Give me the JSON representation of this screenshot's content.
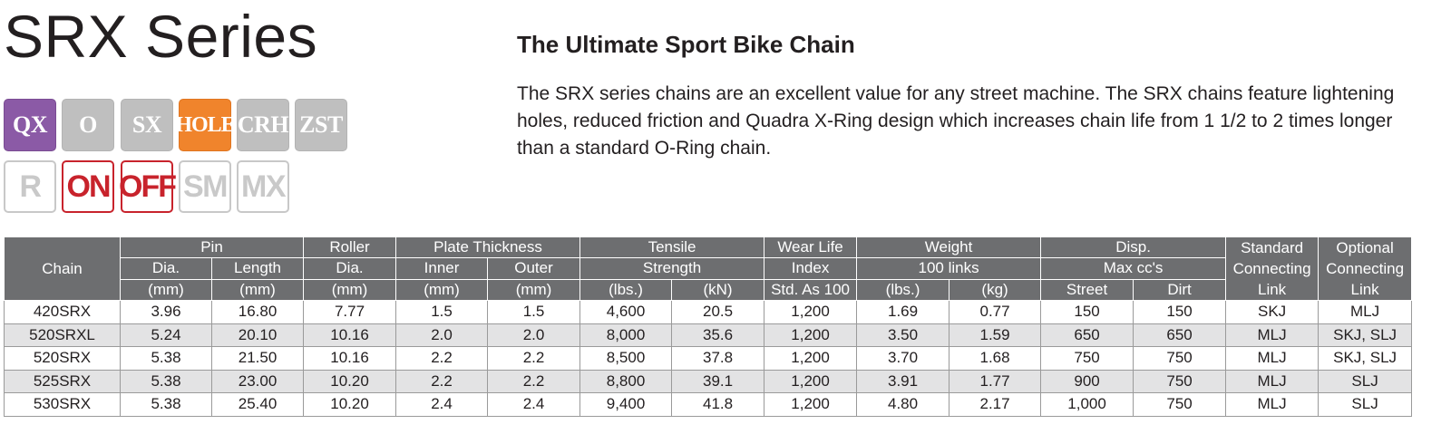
{
  "header": {
    "title": "SRX Series",
    "subtitle": "The Ultimate Sport Bike Chain",
    "description": "The SRX series chains are an excellent value for any street machine. The SRX chains feature lightening holes, reduced friction and Quadra X-Ring design which increases chain life from 1 1/2 to 2 times longer than a standard O-Ring chain."
  },
  "badges": {
    "row1": [
      {
        "label": "QX",
        "style": "purple"
      },
      {
        "label": "O",
        "style": "gray"
      },
      {
        "label": "SX",
        "style": "gray"
      },
      {
        "label": "HOLE",
        "style": "orange"
      },
      {
        "label": "CRH",
        "style": "gray"
      },
      {
        "label": "ZST",
        "style": "gray"
      }
    ],
    "row2": [
      {
        "label": "R",
        "style": "outline-gray"
      },
      {
        "label": "ON",
        "style": "outline-red"
      },
      {
        "label": "OFF",
        "style": "outline-red"
      },
      {
        "label": "SM",
        "style": "outline-gray"
      },
      {
        "label": "MX",
        "style": "outline-gray"
      }
    ]
  },
  "colors": {
    "purple": "#8b5aa6",
    "orange": "#f0842c",
    "gray_badge": "#bfbfbf",
    "red_outline": "#c8232c",
    "header_bg": "#6d6e70",
    "row_stripe": "#e3e3e4"
  },
  "table": {
    "headers": {
      "chain": "Chain",
      "pin": "Pin",
      "roller": "Roller",
      "plate_thickness": "Plate Thickness",
      "tensile": "Tensile",
      "wear_life": "Wear Life",
      "weight": "Weight",
      "disp": "Disp.",
      "standard_link_1": "Standard",
      "standard_link_2": "Connecting",
      "standard_link_3": "Link",
      "optional_link_1": "Optional",
      "optional_link_2": "Connecting",
      "optional_link_3": "Link",
      "pin_dia": "Dia.",
      "pin_length": "Length",
      "roller_dia": "Dia.",
      "inner": "Inner",
      "outer": "Outer",
      "strength": "Strength",
      "index": "Index",
      "links_100": "100 links",
      "max_cc": "Max cc's",
      "unit_pin_dia": "(mm)",
      "unit_pin_length": "(mm)",
      "unit_roller": "(mm)",
      "unit_inner": "(mm)",
      "unit_outer": "(mm)",
      "unit_lbs": "(lbs.)",
      "unit_kn": "(kN)",
      "unit_std": "Std. As 100",
      "unit_weight_lbs": "(lbs.)",
      "unit_kg": "(kg)",
      "unit_street": "Street",
      "unit_dirt": "Dirt"
    },
    "rows": [
      [
        "420SRX",
        "3.96",
        "16.80",
        "7.77",
        "1.5",
        "1.5",
        "4,600",
        "20.5",
        "1,200",
        "1.69",
        "0.77",
        "150",
        "150",
        "SKJ",
        "MLJ"
      ],
      [
        "520SRXL",
        "5.24",
        "20.10",
        "10.16",
        "2.0",
        "2.0",
        "8,000",
        "35.6",
        "1,200",
        "3.50",
        "1.59",
        "650",
        "650",
        "MLJ",
        "SKJ, SLJ"
      ],
      [
        "520SRX",
        "5.38",
        "21.50",
        "10.16",
        "2.2",
        "2.2",
        "8,500",
        "37.8",
        "1,200",
        "3.70",
        "1.68",
        "750",
        "750",
        "MLJ",
        "SKJ, SLJ"
      ],
      [
        "525SRX",
        "5.38",
        "23.00",
        "10.20",
        "2.2",
        "2.2",
        "8,800",
        "39.1",
        "1,200",
        "3.91",
        "1.77",
        "900",
        "750",
        "MLJ",
        "SLJ"
      ],
      [
        "530SRX",
        "5.38",
        "25.40",
        "10.20",
        "2.4",
        "2.4",
        "9,400",
        "41.8",
        "1,200",
        "4.80",
        "2.17",
        "1,000",
        "750",
        "MLJ",
        "SLJ"
      ]
    ]
  }
}
